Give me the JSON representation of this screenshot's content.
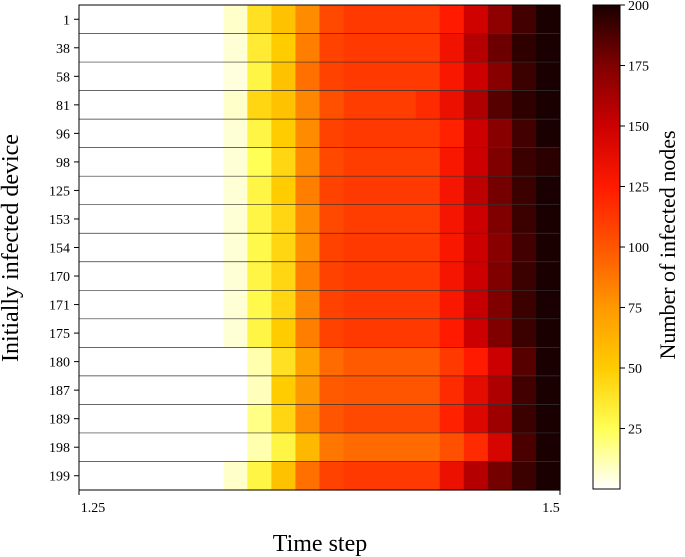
{
  "chart_data": {
    "type": "heatmap",
    "xlabel": "Time step",
    "ylabel": "Initially infected device",
    "x_ticks": [
      "1.25",
      "1.5"
    ],
    "y_categories": [
      "1",
      "38",
      "58",
      "81",
      "96",
      "98",
      "125",
      "153",
      "154",
      "170",
      "171",
      "175",
      "180",
      "187",
      "189",
      "198",
      "199"
    ],
    "colorbar": {
      "label": "Number of infected nodes",
      "min": 0,
      "max": 200,
      "ticks": [
        25,
        50,
        75,
        100,
        125,
        150,
        175,
        200
      ],
      "colormap": "hot_r",
      "colors": [
        "#ffffff",
        "#ffff55",
        "#ffcc00",
        "#ff9900",
        "#ff5500",
        "#ff1a00",
        "#cc0000",
        "#800000",
        "#1a0000"
      ]
    },
    "columns": 20,
    "values": [
      [
        0,
        0,
        0,
        0,
        0,
        0,
        8,
        40,
        55,
        80,
        105,
        112,
        112,
        112,
        112,
        125,
        148,
        170,
        190,
        200
      ],
      [
        0,
        0,
        0,
        0,
        0,
        0,
        6,
        35,
        50,
        85,
        108,
        112,
        112,
        112,
        112,
        132,
        158,
        180,
        195,
        200
      ],
      [
        0,
        0,
        0,
        0,
        0,
        0,
        5,
        30,
        55,
        90,
        108,
        112,
        112,
        112,
        112,
        128,
        150,
        172,
        192,
        200
      ],
      [
        0,
        0,
        0,
        0,
        0,
        0,
        8,
        45,
        55,
        82,
        102,
        110,
        110,
        110,
        118,
        135,
        160,
        185,
        195,
        200
      ],
      [
        0,
        0,
        0,
        0,
        0,
        0,
        6,
        30,
        50,
        80,
        108,
        112,
        112,
        112,
        112,
        122,
        150,
        172,
        190,
        200
      ],
      [
        0,
        0,
        0,
        0,
        0,
        0,
        6,
        25,
        45,
        80,
        105,
        110,
        110,
        110,
        110,
        128,
        150,
        175,
        192,
        196
      ],
      [
        0,
        0,
        0,
        0,
        0,
        0,
        6,
        30,
        50,
        85,
        108,
        112,
        112,
        112,
        112,
        130,
        155,
        178,
        192,
        200
      ],
      [
        0,
        0,
        0,
        0,
        0,
        0,
        6,
        30,
        45,
        80,
        105,
        110,
        110,
        110,
        110,
        130,
        150,
        175,
        192,
        200
      ],
      [
        0,
        0,
        0,
        0,
        0,
        0,
        6,
        28,
        45,
        78,
        108,
        112,
        112,
        112,
        112,
        128,
        150,
        172,
        190,
        200
      ],
      [
        0,
        0,
        0,
        0,
        0,
        0,
        6,
        30,
        45,
        85,
        108,
        112,
        112,
        112,
        112,
        130,
        150,
        175,
        192,
        200
      ],
      [
        0,
        0,
        0,
        0,
        0,
        0,
        6,
        28,
        45,
        82,
        108,
        112,
        112,
        112,
        112,
        128,
        152,
        175,
        192,
        200
      ],
      [
        0,
        0,
        0,
        0,
        0,
        0,
        6,
        30,
        50,
        85,
        108,
        112,
        112,
        112,
        112,
        125,
        150,
        175,
        192,
        200
      ],
      [
        0,
        0,
        0,
        0,
        0,
        0,
        0,
        12,
        40,
        70,
        92,
        98,
        98,
        98,
        98,
        112,
        125,
        150,
        185,
        200
      ],
      [
        0,
        0,
        0,
        0,
        0,
        0,
        0,
        10,
        50,
        75,
        98,
        100,
        100,
        100,
        100,
        118,
        138,
        160,
        190,
        200
      ],
      [
        0,
        0,
        0,
        0,
        0,
        0,
        0,
        18,
        45,
        80,
        100,
        105,
        105,
        105,
        105,
        122,
        142,
        165,
        192,
        200
      ],
      [
        0,
        0,
        0,
        0,
        0,
        0,
        0,
        12,
        30,
        60,
        88,
        92,
        92,
        92,
        92,
        102,
        118,
        145,
        188,
        200
      ],
      [
        0,
        0,
        0,
        0,
        0,
        0,
        8,
        30,
        55,
        90,
        108,
        112,
        112,
        112,
        112,
        135,
        158,
        178,
        192,
        200
      ]
    ]
  }
}
